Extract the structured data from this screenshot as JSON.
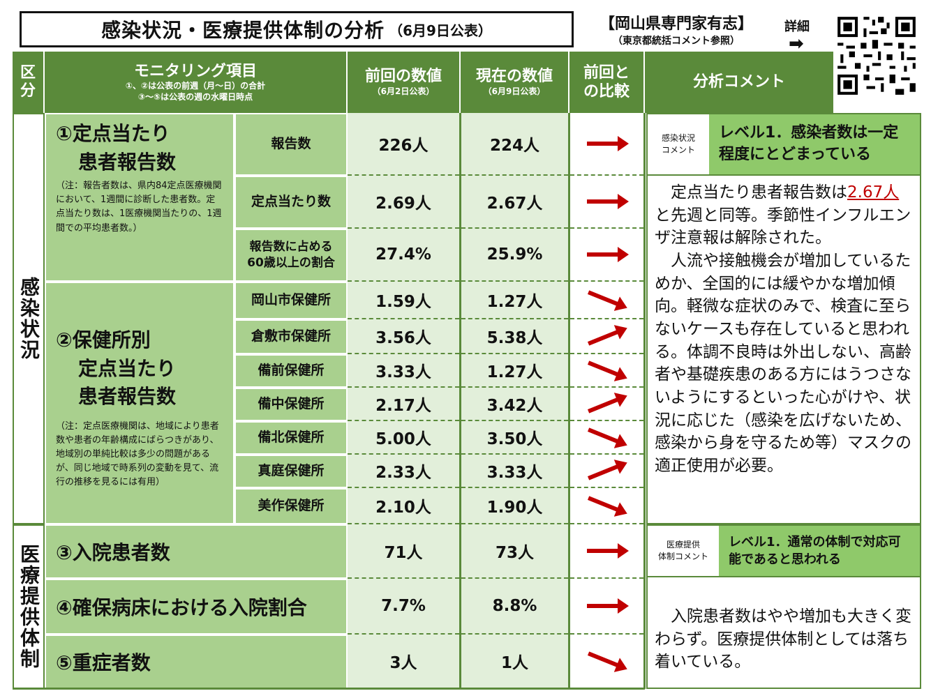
{
  "title": {
    "main": "感染状況・医療提供体制の分析",
    "date": "（6月9日公表）"
  },
  "org": {
    "name": "【岡山県専門家有志】",
    "sub": "（東京都統括コメント参照）"
  },
  "detail": {
    "label": "詳細",
    "arrow": "➡"
  },
  "header": {
    "category": "区\n分",
    "monitoring": "モニタリング項目",
    "monitoring_note1": "①、②は公表の前週（月～日）の合計",
    "monitoring_note2": "③～⑤は公表の週の水曜日時点",
    "prev": "前回の数値",
    "prev_date": "（6月2日公表）",
    "cur": "現在の数値",
    "cur_date": "（6月9日公表）",
    "compare": "前回と\nの比較",
    "comment": "分析コメント"
  },
  "categories": {
    "infection": "感染状況",
    "medical": "医療提供体制"
  },
  "items": {
    "item1_title1": "①定点当たり",
    "item1_title2": "患者報告数",
    "item1_note": "（注：報告者数は、県内84定点医療機関において、1週間に診断した患者数。定点当たり数は、1医療機関当たりの、1週間での平均患者数。）",
    "item2_title1": "②保健所別",
    "item2_title2": "定点当たり",
    "item2_title3": "患者報告数",
    "item2_note": "（注：定点医療機関は、地域により患者数や患者の年齢構成にばらつきがあり、地域別の単純比較は多少の問題があるが、同じ地域で時系列の変動を見て、流行の推移を見るには有用）",
    "item3": "③入院患者数",
    "item4": "④確保病床における入院割合",
    "item5": "⑤重症者数"
  },
  "rows": [
    {
      "sub": "報告数",
      "prev": "226人",
      "cur": "224人",
      "trend": "flat"
    },
    {
      "sub": "定点当たり数",
      "prev": "2.69人",
      "cur": "2.67人",
      "trend": "flat"
    },
    {
      "sub": "報告数に占める\n60歳以上の割合",
      "prev": "27.4%",
      "cur": "25.9%",
      "trend": "flat"
    },
    {
      "sub": "岡山市保健所",
      "prev": "1.59人",
      "cur": "1.27人",
      "trend": "down"
    },
    {
      "sub": "倉敷市保健所",
      "prev": "3.56人",
      "cur": "5.38人",
      "trend": "up"
    },
    {
      "sub": "備前保健所",
      "prev": "3.33人",
      "cur": "1.27人",
      "trend": "down"
    },
    {
      "sub": "備中保健所",
      "prev": "2.17人",
      "cur": "3.42人",
      "trend": "up"
    },
    {
      "sub": "備北保健所",
      "prev": "5.00人",
      "cur": "3.50人",
      "trend": "down"
    },
    {
      "sub": "真庭保健所",
      "prev": "2.33人",
      "cur": "3.33人",
      "trend": "up"
    },
    {
      "sub": "美作保健所",
      "prev": "2.10人",
      "cur": "1.90人",
      "trend": "down"
    },
    {
      "sub": "",
      "prev": "71人",
      "cur": "73人",
      "trend": "flat"
    },
    {
      "sub": "",
      "prev": "7.7%",
      "cur": "8.8%",
      "trend": "flat"
    },
    {
      "sub": "",
      "prev": "3人",
      "cur": "1人",
      "trend": "down"
    }
  ],
  "infection_comment": {
    "label": "感染状況\nコメント",
    "level": "レベル1．感染者数は一定程度にとどまっている",
    "text_before": "　定点当たり患者報告数は",
    "text_highlight": "2.67人",
    "text_after": "と先週と同等。季節性インフルエンザ注意報は解除された。\n　人流や接触機会が増加しているためか、全国的には緩やかな増加傾向。軽微な症状のみで、検査に至らないケースも存在していると思われる。体調不良時は外出しない、高齢者や基礎疾患のある方にはうつさないようにするといった心がけや、状況に応じた（感染を広げないため、感染から身を守るため等）マスクの適正使用が必要。"
  },
  "medical_comment": {
    "label": "医療提供\n体制コメント",
    "level": "レベル1．通常の体制で対応可能であると思われる",
    "text": "　入院患者数はやや増加も大きく変わらず。医療提供体制としては落ち着いている。"
  },
  "colors": {
    "header_green": "#5a8a3a",
    "item_green": "#a9d08e",
    "value_bg": "#e2efda",
    "level_green": "#8fc96a",
    "arrow_red": "#c00000"
  }
}
